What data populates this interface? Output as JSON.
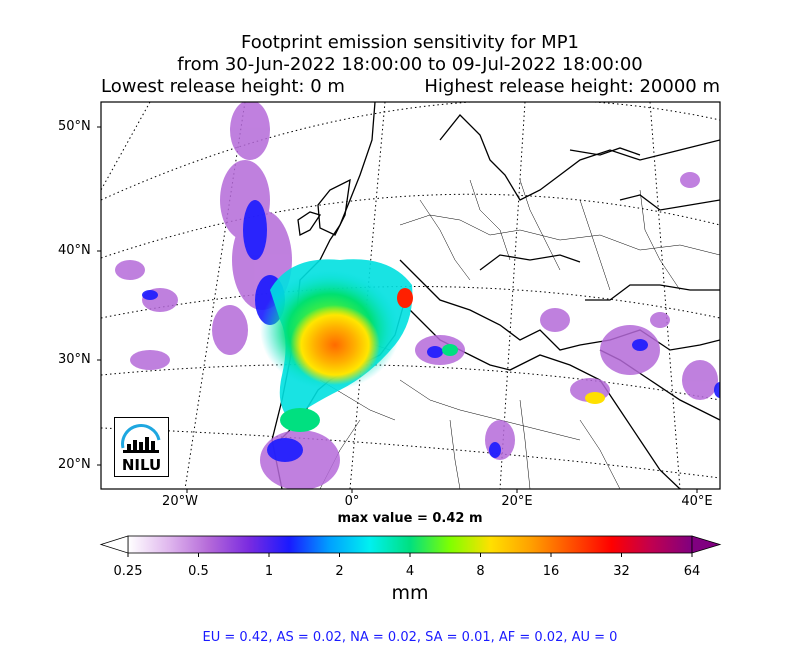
{
  "title": {
    "line1": "Footprint emission sensitivity for MP1",
    "line2": "from 30-Jun-2022 18:00:00 to 09-Jul-2022 18:00:00",
    "line3_left": "Lowest release height: 0 m",
    "line3_right": "Highest release height: 20000 m"
  },
  "map": {
    "lat_labels": [
      "50°N",
      "40°N",
      "30°N",
      "20°N"
    ],
    "lon_labels": [
      "20°W",
      "0°",
      "20°E",
      "40°E"
    ],
    "logo_text": "NILU",
    "accent_colors": {
      "logo_arc": "#1ea7e0"
    }
  },
  "max_value": "max value = 0.42 m",
  "colorbar": {
    "ticks": [
      "0.25",
      "0.5",
      "1",
      "2",
      "4",
      "8",
      "16",
      "32",
      "64"
    ],
    "unit": "mm",
    "colors": [
      "#ffffff",
      "#e0b8ee",
      "#b56ad9",
      "#7a2be0",
      "#1a1aff",
      "#00a0ff",
      "#00f0f0",
      "#00e080",
      "#80ff00",
      "#ffe000",
      "#ffa000",
      "#ff5000",
      "#ff0000",
      "#c00050",
      "#800080"
    ]
  },
  "regions": "EU = 0.42,  AS = 0.02,  NA = 0.02,  SA = 0.01,  AF = 0.02,  AU = 0"
}
